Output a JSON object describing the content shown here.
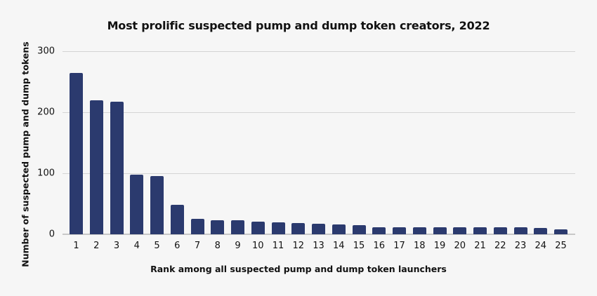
{
  "chart_data": {
    "type": "bar",
    "title": "Most prolific suspected pump and dump token creators, 2022",
    "xlabel": "Rank among all suspected pump and dump token launchers",
    "ylabel": "Number of suspected pump and dump tokens",
    "categories": [
      "1",
      "2",
      "3",
      "4",
      "5",
      "6",
      "7",
      "8",
      "9",
      "10",
      "11",
      "12",
      "13",
      "14",
      "15",
      "16",
      "17",
      "18",
      "19",
      "20",
      "21",
      "22",
      "23",
      "24",
      "25"
    ],
    "values": [
      264,
      220,
      217,
      98,
      95,
      48,
      25,
      23,
      23,
      21,
      20,
      18,
      17,
      16,
      15,
      12,
      12,
      11,
      11,
      11,
      11,
      11,
      11,
      10,
      8
    ],
    "ylim": [
      0,
      300
    ],
    "yticks": [
      0,
      100,
      200,
      300
    ],
    "grid": true,
    "legend": null,
    "bar_color": "#2b3a6e"
  }
}
